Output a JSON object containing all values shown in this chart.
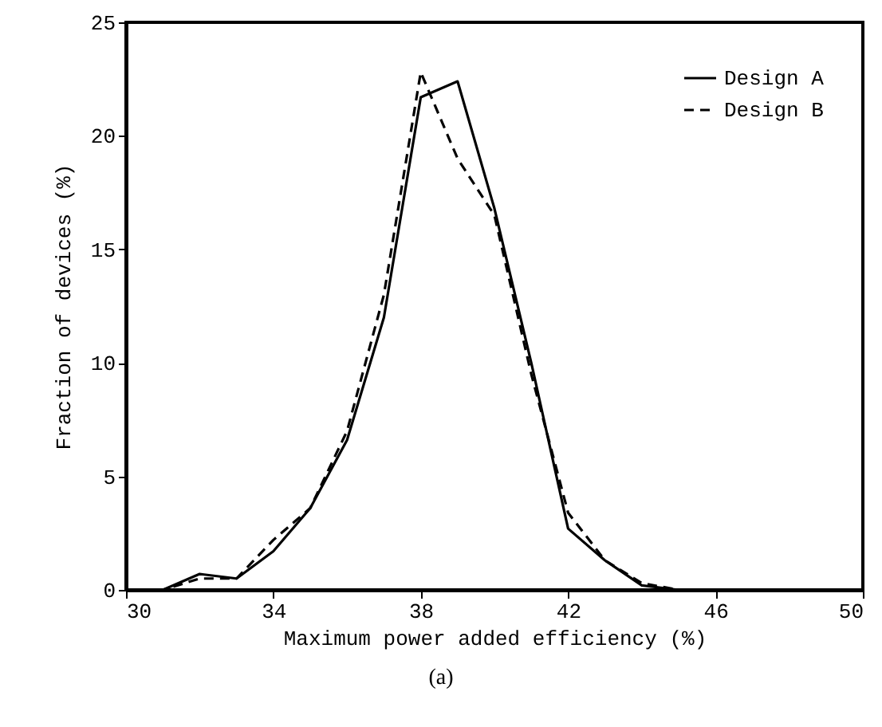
{
  "chart_data": {
    "type": "line",
    "xlabel": "Maximum power added efficiency (%)",
    "ylabel": "Fraction of devices (%)",
    "annotations": [
      "(a)"
    ],
    "x": [
      30,
      31,
      32,
      33,
      34,
      35,
      36,
      37,
      38,
      39,
      40,
      41,
      42,
      43,
      44,
      45,
      46,
      47,
      48,
      49,
      50
    ],
    "xlim": [
      30,
      50
    ],
    "xticks": [
      30,
      34,
      38,
      42,
      46,
      50
    ],
    "ylim": [
      0,
      25
    ],
    "yticks": [
      0,
      5,
      10,
      15,
      20,
      25
    ],
    "legend": "top right",
    "marker": "none",
    "series": [
      {
        "name": "Design A",
        "color": "#000000",
        "line_style": "solid",
        "values": [
          0,
          0,
          0.7,
          0.5,
          1.7,
          3.6,
          6.6,
          12,
          21.7,
          22.4,
          16.8,
          10,
          2.7,
          1.3,
          0.2,
          0,
          0,
          0,
          0,
          0,
          0
        ]
      },
      {
        "name": "Design B",
        "color": "#000000",
        "line_style": "dashed",
        "values": [
          0,
          0,
          0.5,
          0.5,
          2.2,
          3.6,
          7,
          13,
          22.8,
          19,
          16.5,
          9.5,
          3.4,
          1.3,
          0.3,
          0,
          0,
          0,
          0,
          0,
          0
        ]
      }
    ]
  }
}
